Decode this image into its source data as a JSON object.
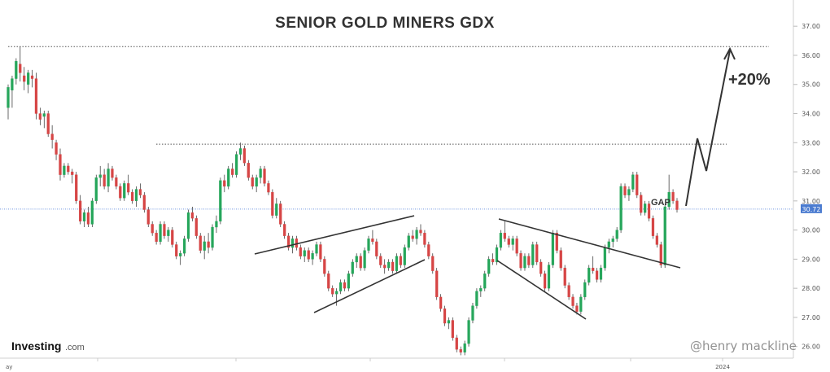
{
  "chart_data": {
    "type": "candlestick",
    "title": "SENIOR GOLD MINERS GDX",
    "ylim": [
      25.6,
      37.9
    ],
    "y_ticks": [
      "37.00",
      "36.00",
      "35.00",
      "34.00",
      "33.00",
      "32.00",
      "31.00",
      "30.00",
      "29.00",
      "28.00",
      "27.00",
      "26.00"
    ],
    "x_labels": [
      "ay",
      "2024"
    ],
    "current_price": "30.72",
    "up_color": "#26a65b",
    "down_color": "#d64545",
    "candles": [
      [
        34.2,
        35.0,
        33.8,
        34.9
      ],
      [
        34.8,
        35.3,
        34.2,
        35.2
      ],
      [
        35.2,
        35.9,
        35.0,
        35.8
      ],
      [
        35.7,
        36.3,
        35.1,
        35.4
      ],
      [
        35.3,
        35.6,
        34.8,
        35.1
      ],
      [
        35.0,
        35.5,
        34.7,
        35.4
      ],
      [
        35.3,
        35.5,
        34.9,
        35.2
      ],
      [
        35.2,
        35.4,
        33.8,
        34.0
      ],
      [
        34.0,
        34.2,
        33.6,
        33.8
      ],
      [
        33.9,
        34.1,
        33.5,
        34.0
      ],
      [
        34.0,
        34.1,
        33.2,
        33.3
      ],
      [
        33.3,
        33.6,
        32.8,
        33.1
      ],
      [
        33.0,
        33.1,
        32.4,
        32.6
      ],
      [
        32.6,
        32.8,
        31.7,
        31.9
      ],
      [
        31.9,
        32.3,
        31.8,
        32.2
      ],
      [
        32.2,
        32.3,
        31.9,
        32.0
      ],
      [
        32.0,
        32.1,
        31.6,
        31.9
      ],
      [
        31.9,
        32.0,
        30.9,
        31.0
      ],
      [
        31.0,
        31.2,
        30.2,
        30.3
      ],
      [
        30.3,
        30.7,
        30.1,
        30.6
      ],
      [
        30.6,
        30.8,
        30.1,
        30.2
      ],
      [
        30.2,
        31.1,
        30.1,
        31.0
      ],
      [
        31.0,
        31.9,
        30.9,
        31.8
      ],
      [
        31.8,
        32.2,
        31.5,
        31.9
      ],
      [
        31.9,
        32.1,
        31.4,
        31.5
      ],
      [
        31.5,
        32.3,
        31.3,
        32.1
      ],
      [
        32.1,
        32.2,
        31.7,
        31.8
      ],
      [
        31.8,
        31.9,
        31.4,
        31.5
      ],
      [
        31.5,
        31.6,
        31.0,
        31.1
      ],
      [
        31.1,
        31.7,
        31.0,
        31.6
      ],
      [
        31.6,
        31.9,
        31.2,
        31.3
      ],
      [
        31.3,
        31.4,
        30.9,
        31.0
      ],
      [
        31.0,
        31.5,
        30.8,
        31.4
      ],
      [
        31.4,
        31.6,
        31.1,
        31.2
      ],
      [
        31.2,
        31.3,
        30.6,
        30.7
      ],
      [
        30.7,
        30.8,
        30.1,
        30.2
      ],
      [
        30.2,
        30.3,
        29.8,
        29.9
      ],
      [
        29.9,
        30.0,
        29.5,
        29.6
      ],
      [
        29.6,
        30.3,
        29.5,
        30.2
      ],
      [
        30.2,
        30.3,
        29.7,
        29.8
      ],
      [
        29.8,
        30.1,
        29.6,
        30.0
      ],
      [
        30.0,
        30.1,
        29.4,
        29.5
      ],
      [
        29.5,
        29.6,
        29.0,
        29.1
      ],
      [
        29.1,
        29.3,
        28.8,
        29.2
      ],
      [
        29.2,
        29.8,
        29.1,
        29.7
      ],
      [
        29.7,
        30.7,
        29.6,
        30.6
      ],
      [
        30.6,
        30.8,
        30.3,
        30.4
      ],
      [
        30.4,
        30.5,
        29.7,
        29.8
      ],
      [
        29.8,
        29.9,
        29.2,
        29.3
      ],
      [
        29.3,
        29.8,
        29.0,
        29.6
      ],
      [
        29.6,
        29.9,
        29.2,
        29.4
      ],
      [
        29.4,
        30.2,
        29.3,
        30.1
      ],
      [
        30.1,
        30.5,
        29.9,
        30.3
      ],
      [
        30.3,
        31.8,
        30.2,
        31.7
      ],
      [
        31.7,
        31.9,
        31.3,
        31.5
      ],
      [
        31.5,
        32.2,
        31.4,
        32.1
      ],
      [
        32.1,
        32.3,
        31.8,
        31.9
      ],
      [
        31.9,
        32.7,
        31.8,
        32.6
      ],
      [
        32.6,
        33.0,
        32.4,
        32.8
      ],
      [
        32.8,
        32.9,
        32.2,
        32.3
      ],
      [
        32.3,
        32.4,
        31.7,
        31.8
      ],
      [
        31.8,
        31.9,
        31.4,
        31.5
      ],
      [
        31.5,
        31.9,
        31.3,
        31.8
      ],
      [
        31.8,
        32.2,
        31.6,
        32.1
      ],
      [
        32.1,
        32.2,
        31.5,
        31.6
      ],
      [
        31.6,
        31.7,
        31.2,
        31.3
      ],
      [
        31.3,
        31.4,
        30.4,
        30.5
      ],
      [
        30.5,
        31.1,
        30.4,
        30.9
      ],
      [
        30.9,
        31.0,
        30.1,
        30.2
      ],
      [
        30.2,
        30.3,
        29.7,
        29.8
      ],
      [
        29.8,
        29.9,
        29.3,
        29.4
      ],
      [
        29.4,
        29.8,
        29.2,
        29.7
      ],
      [
        29.7,
        29.8,
        29.3,
        29.4
      ],
      [
        29.4,
        29.5,
        29.0,
        29.1
      ],
      [
        29.1,
        29.4,
        28.9,
        29.3
      ],
      [
        29.3,
        29.4,
        28.9,
        29.0
      ],
      [
        29.0,
        29.3,
        28.8,
        29.2
      ],
      [
        29.2,
        29.6,
        29.1,
        29.5
      ],
      [
        29.5,
        29.6,
        28.9,
        29.0
      ],
      [
        29.0,
        29.1,
        28.4,
        28.5
      ],
      [
        28.5,
        28.6,
        27.9,
        28.0
      ],
      [
        28.0,
        28.1,
        27.7,
        27.8
      ],
      [
        27.8,
        28.0,
        27.4,
        27.9
      ],
      [
        27.9,
        28.3,
        27.8,
        28.2
      ],
      [
        28.2,
        28.3,
        27.9,
        28.0
      ],
      [
        28.0,
        28.6,
        27.9,
        28.5
      ],
      [
        28.5,
        29.0,
        28.4,
        28.9
      ],
      [
        28.9,
        29.2,
        28.7,
        29.1
      ],
      [
        29.1,
        29.2,
        28.6,
        28.7
      ],
      [
        28.7,
        29.4,
        28.6,
        29.3
      ],
      [
        29.3,
        29.8,
        29.2,
        29.7
      ],
      [
        29.7,
        30.0,
        29.5,
        29.6
      ],
      [
        29.6,
        29.7,
        29.0,
        29.1
      ],
      [
        29.1,
        29.2,
        28.7,
        28.8
      ],
      [
        28.8,
        29.0,
        28.5,
        28.7
      ],
      [
        28.7,
        29.0,
        28.6,
        28.9
      ],
      [
        28.9,
        29.0,
        28.5,
        28.6
      ],
      [
        28.6,
        29.2,
        28.5,
        29.1
      ],
      [
        29.1,
        29.2,
        28.7,
        28.8
      ],
      [
        28.8,
        29.5,
        28.7,
        29.4
      ],
      [
        29.4,
        29.9,
        29.3,
        29.8
      ],
      [
        29.8,
        30.0,
        29.6,
        29.7
      ],
      [
        29.7,
        30.1,
        29.5,
        30.0
      ],
      [
        30.0,
        30.2,
        29.8,
        29.9
      ],
      [
        29.9,
        30.0,
        29.4,
        29.5
      ],
      [
        29.5,
        29.6,
        29.0,
        29.1
      ],
      [
        29.1,
        29.2,
        28.5,
        28.6
      ],
      [
        28.6,
        28.7,
        27.6,
        27.7
      ],
      [
        27.7,
        27.8,
        27.2,
        27.3
      ],
      [
        27.3,
        27.4,
        26.7,
        26.8
      ],
      [
        26.8,
        27.0,
        26.6,
        26.9
      ],
      [
        26.9,
        27.0,
        26.2,
        26.3
      ],
      [
        26.3,
        26.4,
        25.8,
        25.9
      ],
      [
        25.9,
        26.0,
        25.7,
        25.8
      ],
      [
        25.8,
        26.2,
        25.7,
        26.1
      ],
      [
        26.1,
        27.0,
        26.0,
        26.9
      ],
      [
        26.9,
        27.5,
        26.8,
        27.4
      ],
      [
        27.4,
        28.0,
        27.3,
        27.9
      ],
      [
        27.9,
        28.1,
        27.7,
        28.0
      ],
      [
        28.0,
        28.6,
        27.9,
        28.5
      ],
      [
        28.5,
        29.1,
        28.4,
        29.0
      ],
      [
        29.0,
        29.2,
        28.8,
        28.9
      ],
      [
        28.9,
        29.5,
        28.8,
        29.4
      ],
      [
        29.4,
        30.0,
        29.3,
        29.9
      ],
      [
        29.9,
        30.3,
        29.6,
        29.7
      ],
      [
        29.7,
        29.8,
        29.4,
        29.5
      ],
      [
        29.5,
        29.8,
        29.3,
        29.7
      ],
      [
        29.7,
        29.8,
        29.1,
        29.2
      ],
      [
        29.2,
        29.3,
        28.6,
        28.7
      ],
      [
        28.7,
        29.2,
        28.6,
        29.1
      ],
      [
        29.1,
        29.2,
        28.7,
        28.8
      ],
      [
        28.8,
        29.6,
        28.7,
        29.5
      ],
      [
        29.5,
        29.6,
        28.8,
        28.9
      ],
      [
        28.9,
        29.0,
        28.4,
        28.5
      ],
      [
        28.5,
        28.6,
        27.9,
        28.0
      ],
      [
        28.0,
        28.9,
        27.9,
        28.8
      ],
      [
        28.8,
        30.0,
        28.7,
        29.9
      ],
      [
        29.9,
        30.0,
        29.2,
        29.3
      ],
      [
        29.3,
        29.4,
        28.6,
        28.7
      ],
      [
        28.7,
        28.8,
        28.0,
        28.1
      ],
      [
        28.1,
        28.2,
        27.6,
        27.7
      ],
      [
        27.7,
        27.8,
        27.3,
        27.4
      ],
      [
        27.4,
        27.5,
        27.1,
        27.2
      ],
      [
        27.2,
        27.8,
        27.1,
        27.7
      ],
      [
        27.7,
        28.3,
        27.6,
        28.2
      ],
      [
        28.2,
        28.8,
        28.1,
        28.7
      ],
      [
        28.7,
        29.1,
        28.5,
        28.6
      ],
      [
        28.6,
        28.7,
        28.2,
        28.3
      ],
      [
        28.3,
        28.8,
        28.2,
        28.7
      ],
      [
        28.7,
        29.5,
        28.6,
        29.4
      ],
      [
        29.4,
        29.7,
        29.2,
        29.6
      ],
      [
        29.6,
        29.8,
        29.4,
        29.7
      ],
      [
        29.7,
        30.1,
        29.6,
        30.0
      ],
      [
        30.0,
        31.6,
        29.9,
        31.5
      ],
      [
        31.5,
        31.6,
        31.1,
        31.2
      ],
      [
        31.2,
        31.5,
        31.0,
        31.4
      ],
      [
        31.4,
        32.0,
        31.3,
        31.9
      ],
      [
        31.9,
        32.0,
        31.1,
        31.2
      ],
      [
        31.2,
        31.3,
        30.5,
        30.6
      ],
      [
        30.6,
        31.0,
        30.5,
        30.9
      ],
      [
        30.9,
        31.0,
        30.3,
        30.4
      ],
      [
        30.4,
        30.5,
        29.7,
        29.8
      ],
      [
        29.8,
        29.9,
        29.4,
        29.5
      ],
      [
        29.5,
        29.6,
        28.7,
        28.8
      ],
      [
        28.8,
        30.9,
        28.7,
        30.8
      ],
      [
        30.8,
        31.9,
        30.7,
        31.3
      ],
      [
        31.3,
        31.4,
        30.9,
        31.0
      ],
      [
        31.0,
        31.1,
        30.6,
        30.7
      ]
    ],
    "annotations": {
      "gap_label": "GAP",
      "target_label": "+20%"
    },
    "resistance_levels": [
      36.3,
      32.95
    ],
    "current_line_value": 30.72
  },
  "branding": {
    "logo_bold": "Investing",
    "logo_suffix": ".com",
    "watermark": "@henry mackline"
  }
}
